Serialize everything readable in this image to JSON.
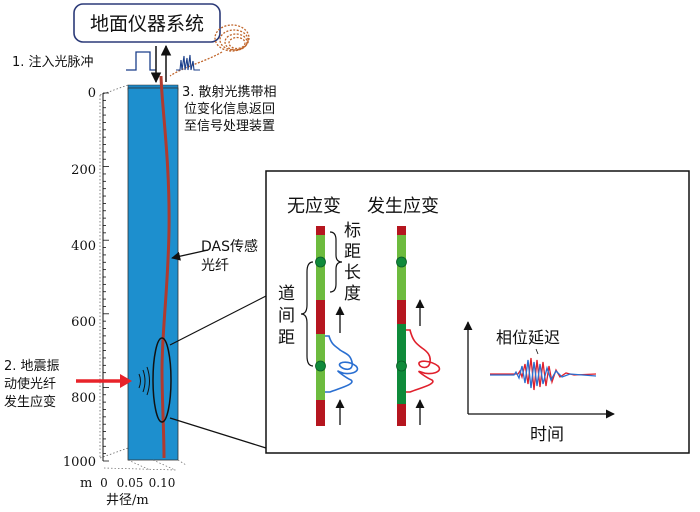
{
  "surface_system": {
    "title": "地面仪器系统"
  },
  "steps": {
    "step1": "1. 注入光脉冲",
    "step2": [
      "2. 地震振",
      "动使光纤",
      "发生应变"
    ],
    "step3": [
      "3. 散射光携带相",
      "位变化信息返回",
      "至信号处理装置"
    ]
  },
  "fiber_label": [
    "DAS传感",
    "光纤"
  ],
  "depth_axis": {
    "unit": "m",
    "ticks": [
      "0",
      "200",
      "400",
      "600",
      "800",
      "1000"
    ]
  },
  "radius_axis": {
    "ticks": [
      "0",
      "0.05",
      "0.10"
    ],
    "label": "井径/m"
  },
  "detail_panel": {
    "label_no_strain": "无应变",
    "label_strain": "发生应变",
    "gauge_length": [
      "标",
      "距",
      "长",
      "度"
    ],
    "channel_spacing": [
      "道",
      "间",
      "距"
    ],
    "phase_delay": "相位延迟",
    "time_axis": "时间"
  },
  "colors": {
    "well": "#1d8fce",
    "fiber": "#b03a2e",
    "rod_red": "#b5161f",
    "rod_green_light": "#6dbb3e",
    "rod_green_dark": "#0f8a3a",
    "wave_blue": "#2a6fd1",
    "wave_red": "#e0202c",
    "arrow_red": "#e8232a"
  }
}
